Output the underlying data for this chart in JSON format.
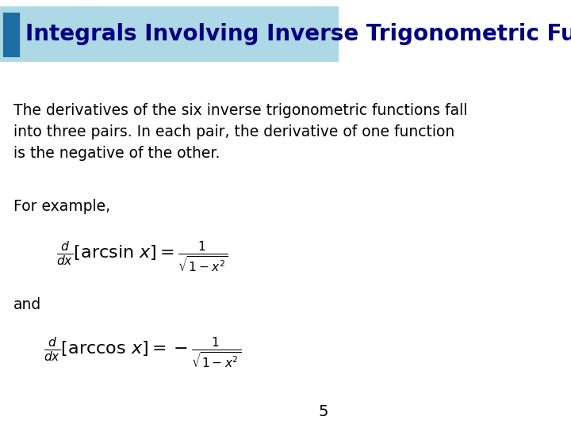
{
  "title": "Integrals Involving Inverse Trigonometric Functions",
  "title_bg_color": "#ADD8E6",
  "title_text_color": "#000080",
  "title_font_size": 20,
  "body_text_color": "#000000",
  "bg_color": "#FFFFFF",
  "paragraph1_line1": "The derivatives of the six inverse trigonometric functions fall",
  "paragraph1_line2": "into three pairs. In each pair, the derivative of one function",
  "paragraph1_line3": "is the negative of the other.",
  "paragraph2": "For example,",
  "paragraph3": "and",
  "formula1": "$\\frac{d}{dx}[\\arcsin\\, x] = \\frac{1}{\\sqrt{1-x^2}}$",
  "formula2": "$\\frac{d}{dx}[\\arccos\\, x] = -\\frac{1}{\\sqrt{1-x^2}}$",
  "page_number": "5",
  "slide_icon_color_dark": "#1E6EA6",
  "slide_icon_color_light": "#ADD8E6"
}
